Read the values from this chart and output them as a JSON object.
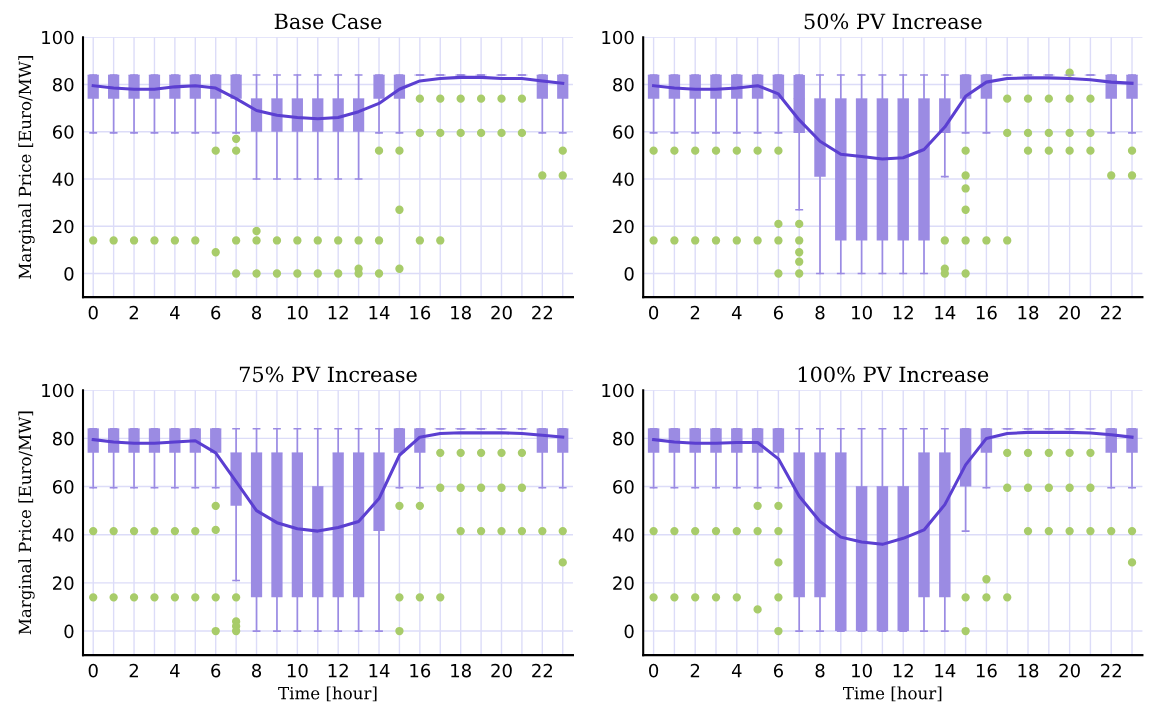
{
  "chart_data": [
    {
      "type": "box",
      "title": "Base Case",
      "ylabel": "Marginal Price [Euro/MW]",
      "ylim": [
        -10,
        100
      ],
      "yticks": [
        0,
        20,
        40,
        60,
        80,
        100
      ],
      "grid": true,
      "categories": [
        "0",
        null,
        "2",
        null,
        "4",
        null,
        "6",
        null,
        "8",
        null,
        "10",
        null,
        "12",
        null,
        "14",
        null,
        "16",
        null,
        "18",
        null,
        "20",
        null,
        "22",
        null
      ],
      "series": [
        {
          "color": "#9b8be3",
          "boxes": [
            {
              "low": 59.5,
              "q1": 74,
              "median": 84,
              "q3": 84,
              "high": 84,
              "outliers": [
                14
              ]
            },
            {
              "low": 59.5,
              "q1": 74,
              "median": 84,
              "q3": 84,
              "high": 84,
              "outliers": [
                14
              ]
            },
            {
              "low": 59.5,
              "q1": 74,
              "median": 84,
              "q3": 84,
              "high": 84,
              "outliers": [
                14
              ]
            },
            {
              "low": 59.5,
              "q1": 74,
              "median": 84,
              "q3": 84,
              "high": 84,
              "outliers": [
                14
              ]
            },
            {
              "low": 59.5,
              "q1": 74,
              "median": 84,
              "q3": 84,
              "high": 84,
              "outliers": [
                14
              ]
            },
            {
              "low": 59.5,
              "q1": 74,
              "median": 84,
              "q3": 84,
              "high": 84,
              "outliers": [
                14
              ]
            },
            {
              "low": 59.5,
              "q1": 74,
              "median": 84,
              "q3": 84,
              "high": 84,
              "outliers": [
                52,
                9
              ]
            },
            {
              "low": 59.5,
              "q1": 74,
              "median": 84,
              "q3": 84,
              "high": 84,
              "outliers": [
                57,
                52,
                14,
                0
              ]
            },
            {
              "low": 40,
              "q1": 60,
              "median": 74,
              "q3": 74,
              "high": 84,
              "outliers": [
                18,
                14,
                0
              ]
            },
            {
              "low": 40,
              "q1": 60,
              "median": 74,
              "q3": 74,
              "high": 84,
              "outliers": [
                14,
                0
              ]
            },
            {
              "low": 40,
              "q1": 60,
              "median": 74,
              "q3": 74,
              "high": 84,
              "outliers": [
                14,
                0
              ]
            },
            {
              "low": 40,
              "q1": 60,
              "median": 74,
              "q3": 74,
              "high": 84,
              "outliers": [
                14,
                0
              ]
            },
            {
              "low": 40,
              "q1": 60,
              "median": 74,
              "q3": 74,
              "high": 84,
              "outliers": [
                14,
                0
              ]
            },
            {
              "low": 40,
              "q1": 60,
              "median": 74,
              "q3": 74,
              "high": 84,
              "outliers": [
                14,
                2,
                0
              ]
            },
            {
              "low": 59.5,
              "q1": 74,
              "median": 84,
              "q3": 84,
              "high": 84,
              "outliers": [
                52,
                14,
                0
              ]
            },
            {
              "low": 59.5,
              "q1": 74,
              "median": 84,
              "q3": 84,
              "high": 84,
              "outliers": [
                52,
                27,
                2
              ]
            },
            {
              "low": 84,
              "q1": 84,
              "median": 84,
              "q3": 84,
              "high": 84,
              "outliers": [
                74,
                59.5,
                14
              ]
            },
            {
              "low": 84,
              "q1": 84,
              "median": 84,
              "q3": 84,
              "high": 84,
              "outliers": [
                74,
                59.5,
                14
              ]
            },
            {
              "low": 84,
              "q1": 84,
              "median": 84,
              "q3": 84,
              "high": 84,
              "outliers": [
                74,
                59.5
              ]
            },
            {
              "low": 84,
              "q1": 84,
              "median": 84,
              "q3": 84,
              "high": 84,
              "outliers": [
                74,
                59.5
              ]
            },
            {
              "low": 84,
              "q1": 84,
              "median": 84,
              "q3": 84,
              "high": 84,
              "outliers": [
                74,
                59.5
              ]
            },
            {
              "low": 84,
              "q1": 84,
              "median": 84,
              "q3": 84,
              "high": 84,
              "outliers": [
                74,
                59.5
              ]
            },
            {
              "low": 59.5,
              "q1": 74,
              "median": 84,
              "q3": 84,
              "high": 84,
              "outliers": [
                41.5
              ]
            },
            {
              "low": 59.5,
              "q1": 74,
              "median": 84,
              "q3": 84,
              "high": 84,
              "outliers": [
                52,
                41.5
              ]
            }
          ]
        },
        {
          "type": "line",
          "color": "#5b3fd1",
          "values": [
            79.5,
            78.5,
            78,
            78,
            79,
            79.5,
            78.5,
            74,
            69,
            67,
            66,
            65.5,
            66,
            68.5,
            72,
            78,
            81.5,
            82.5,
            83,
            83,
            82.5,
            82.5,
            81.5,
            80.5
          ]
        }
      ]
    },
    {
      "type": "box",
      "title": "50% PV Increase",
      "ylim": [
        -10,
        100
      ],
      "yticks": [
        0,
        20,
        40,
        60,
        80,
        100
      ],
      "grid": true,
      "categories": [
        "0",
        null,
        "2",
        null,
        "4",
        null,
        "6",
        null,
        "8",
        null,
        "10",
        null,
        "12",
        null,
        "14",
        null,
        "16",
        null,
        "18",
        null,
        "20",
        null,
        "22",
        null
      ],
      "series": [
        {
          "color": "#9b8be3",
          "boxes": [
            {
              "low": 59.5,
              "q1": 74,
              "median": 84,
              "q3": 84,
              "high": 84,
              "outliers": [
                52,
                14
              ]
            },
            {
              "low": 59.5,
              "q1": 74,
              "median": 84,
              "q3": 84,
              "high": 84,
              "outliers": [
                52,
                14
              ]
            },
            {
              "low": 59.5,
              "q1": 74,
              "median": 84,
              "q3": 84,
              "high": 84,
              "outliers": [
                52,
                14
              ]
            },
            {
              "low": 59.5,
              "q1": 74,
              "median": 84,
              "q3": 84,
              "high": 84,
              "outliers": [
                52,
                14
              ]
            },
            {
              "low": 59.5,
              "q1": 74,
              "median": 84,
              "q3": 84,
              "high": 84,
              "outliers": [
                52,
                14
              ]
            },
            {
              "low": 59.5,
              "q1": 74,
              "median": 84,
              "q3": 84,
              "high": 84,
              "outliers": [
                52,
                14
              ]
            },
            {
              "low": 59.5,
              "q1": 74,
              "median": 84,
              "q3": 84,
              "high": 84,
              "outliers": [
                52,
                21,
                14,
                0
              ]
            },
            {
              "low": 27,
              "q1": 59.5,
              "median": 74,
              "q3": 84,
              "high": 84,
              "outliers": [
                21,
                14,
                9,
                5,
                0
              ]
            },
            {
              "low": 0,
              "q1": 41,
              "median": 74,
              "q3": 74,
              "high": 84
            },
            {
              "low": 0,
              "q1": 14,
              "median": 74,
              "q3": 74,
              "high": 84
            },
            {
              "low": 0,
              "q1": 14,
              "median": 74,
              "q3": 74,
              "high": 84
            },
            {
              "low": 0,
              "q1": 14,
              "median": 74,
              "q3": 74,
              "high": 84
            },
            {
              "low": 0,
              "q1": 14,
              "median": 74,
              "q3": 74,
              "high": 84
            },
            {
              "low": 0,
              "q1": 14,
              "median": 74,
              "q3": 74,
              "high": 84
            },
            {
              "low": 41,
              "q1": 59.5,
              "median": 74,
              "q3": 74,
              "high": 84,
              "outliers": [
                14,
                2,
                0
              ]
            },
            {
              "low": 59.5,
              "q1": 74,
              "median": 84,
              "q3": 84,
              "high": 84,
              "outliers": [
                52,
                41.5,
                36,
                27,
                14,
                0
              ]
            },
            {
              "low": 59.5,
              "q1": 74,
              "median": 84,
              "q3": 84,
              "high": 84,
              "outliers": [
                14
              ]
            },
            {
              "low": 84,
              "q1": 84,
              "median": 84,
              "q3": 84,
              "high": 84,
              "outliers": [
                74,
                59.5,
                14
              ]
            },
            {
              "low": 84,
              "q1": 84,
              "median": 84,
              "q3": 84,
              "high": 84,
              "outliers": [
                74,
                59.5,
                52
              ]
            },
            {
              "low": 84,
              "q1": 84,
              "median": 84,
              "q3": 84,
              "high": 84,
              "outliers": [
                74,
                59.5,
                52
              ]
            },
            {
              "low": 84,
              "q1": 84,
              "median": 84,
              "q3": 84,
              "high": 84,
              "outliers": [
                85,
                74,
                59.5,
                52
              ]
            },
            {
              "low": 84,
              "q1": 84,
              "median": 84,
              "q3": 84,
              "high": 84,
              "outliers": [
                74,
                59.5,
                52
              ]
            },
            {
              "low": 59.5,
              "q1": 74,
              "median": 84,
              "q3": 84,
              "high": 84,
              "outliers": [
                41.5
              ]
            },
            {
              "low": 59.5,
              "q1": 74,
              "median": 84,
              "q3": 84,
              "high": 84,
              "outliers": [
                52,
                41.5
              ]
            }
          ]
        },
        {
          "type": "line",
          "color": "#5b3fd1",
          "values": [
            79.5,
            78.5,
            78,
            78,
            78.5,
            79.5,
            76,
            65,
            56,
            50.5,
            49.5,
            48.5,
            49,
            52.5,
            62,
            75,
            81,
            82.5,
            82.8,
            82.8,
            82.5,
            82,
            81,
            80.5
          ]
        }
      ]
    },
    {
      "type": "box",
      "title": "75% PV Increase",
      "xlabel": "Time [hour]",
      "ylabel": "Marginal Price [Euro/MW]",
      "ylim": [
        -10,
        100
      ],
      "yticks": [
        0,
        20,
        40,
        60,
        80,
        100
      ],
      "grid": true,
      "categories": [
        "0",
        null,
        "2",
        null,
        "4",
        null,
        "6",
        null,
        "8",
        null,
        "10",
        null,
        "12",
        null,
        "14",
        null,
        "16",
        null,
        "18",
        null,
        "20",
        null,
        "22",
        null
      ],
      "series": [
        {
          "color": "#9b8be3",
          "boxes": [
            {
              "low": 59.5,
              "q1": 74,
              "median": 84,
              "q3": 84,
              "high": 84,
              "outliers": [
                41.5,
                14
              ]
            },
            {
              "low": 59.5,
              "q1": 74,
              "median": 84,
              "q3": 84,
              "high": 84,
              "outliers": [
                41.5,
                14
              ]
            },
            {
              "low": 59.5,
              "q1": 74,
              "median": 84,
              "q3": 84,
              "high": 84,
              "outliers": [
                41.5,
                14
              ]
            },
            {
              "low": 59.5,
              "q1": 74,
              "median": 84,
              "q3": 84,
              "high": 84,
              "outliers": [
                41.5,
                14
              ]
            },
            {
              "low": 59.5,
              "q1": 74,
              "median": 84,
              "q3": 84,
              "high": 84,
              "outliers": [
                41.5,
                14
              ]
            },
            {
              "low": 59.5,
              "q1": 74,
              "median": 84,
              "q3": 84,
              "high": 84,
              "outliers": [
                41.5,
                14
              ]
            },
            {
              "low": 59.5,
              "q1": 74,
              "median": 84,
              "q3": 84,
              "high": 84,
              "outliers": [
                52,
                42,
                14,
                0
              ]
            },
            {
              "low": 21,
              "q1": 52,
              "median": 74,
              "q3": 74,
              "high": 84,
              "outliers": [
                14,
                4,
                2,
                0
              ]
            },
            {
              "low": 0,
              "q1": 14,
              "median": 74,
              "q3": 74,
              "high": 84
            },
            {
              "low": 0,
              "q1": 14,
              "median": 74,
              "q3": 74,
              "high": 84
            },
            {
              "low": 0,
              "q1": 14,
              "median": 74,
              "q3": 74,
              "high": 84
            },
            {
              "low": 0,
              "q1": 14,
              "median": 60,
              "q3": 60,
              "high": 84
            },
            {
              "low": 0,
              "q1": 14,
              "median": 74,
              "q3": 74,
              "high": 84
            },
            {
              "low": 0,
              "q1": 14,
              "median": 74,
              "q3": 74,
              "high": 84
            },
            {
              "low": 0,
              "q1": 41.5,
              "median": 74,
              "q3": 74,
              "high": 84
            },
            {
              "low": 59.5,
              "q1": 74,
              "median": 84,
              "q3": 84,
              "high": 84,
              "outliers": [
                52,
                14,
                0
              ]
            },
            {
              "low": 59.5,
              "q1": 74,
              "median": 84,
              "q3": 84,
              "high": 84,
              "outliers": [
                52,
                14
              ]
            },
            {
              "low": 84,
              "q1": 84,
              "median": 84,
              "q3": 84,
              "high": 84,
              "outliers": [
                74,
                59.5,
                14
              ]
            },
            {
              "low": 84,
              "q1": 84,
              "median": 84,
              "q3": 84,
              "high": 84,
              "outliers": [
                74,
                59.5,
                41.5
              ]
            },
            {
              "low": 84,
              "q1": 84,
              "median": 84,
              "q3": 84,
              "high": 84,
              "outliers": [
                74,
                59.5,
                41.5
              ]
            },
            {
              "low": 84,
              "q1": 84,
              "median": 84,
              "q3": 84,
              "high": 84,
              "outliers": [
                74,
                59.5,
                41.5
              ]
            },
            {
              "low": 84,
              "q1": 84,
              "median": 84,
              "q3": 84,
              "high": 84,
              "outliers": [
                74,
                59.5,
                41.5
              ]
            },
            {
              "low": 59.5,
              "q1": 74,
              "median": 84,
              "q3": 84,
              "high": 84,
              "outliers": [
                41.5
              ]
            },
            {
              "low": 59.5,
              "q1": 74,
              "median": 84,
              "q3": 84,
              "high": 84,
              "outliers": [
                41.5,
                28.5
              ]
            }
          ]
        },
        {
          "type": "line",
          "color": "#5b3fd1",
          "values": [
            79.5,
            78.5,
            78,
            78,
            78.5,
            79,
            74,
            62,
            50,
            45,
            42.5,
            41.5,
            43,
            45.5,
            55,
            73,
            80.5,
            82,
            82.3,
            82.3,
            82.3,
            82,
            81.3,
            80.5
          ]
        }
      ]
    },
    {
      "type": "box",
      "title": "100% PV Increase",
      "xlabel": "Time [hour]",
      "ylim": [
        -10,
        100
      ],
      "yticks": [
        0,
        20,
        40,
        60,
        80,
        100
      ],
      "grid": true,
      "categories": [
        "0",
        null,
        "2",
        null,
        "4",
        null,
        "6",
        null,
        "8",
        null,
        "10",
        null,
        "12",
        null,
        "14",
        null,
        "16",
        null,
        "18",
        null,
        "20",
        null,
        "22",
        null
      ],
      "series": [
        {
          "color": "#9b8be3",
          "boxes": [
            {
              "low": 59.5,
              "q1": 74,
              "median": 84,
              "q3": 84,
              "high": 84,
              "outliers": [
                41.5,
                14
              ]
            },
            {
              "low": 59.5,
              "q1": 74,
              "median": 84,
              "q3": 84,
              "high": 84,
              "outliers": [
                41.5,
                14
              ]
            },
            {
              "low": 59.5,
              "q1": 74,
              "median": 84,
              "q3": 84,
              "high": 84,
              "outliers": [
                41.5,
                14
              ]
            },
            {
              "low": 59.5,
              "q1": 74,
              "median": 84,
              "q3": 84,
              "high": 84,
              "outliers": [
                41.5,
                14
              ]
            },
            {
              "low": 59.5,
              "q1": 74,
              "median": 84,
              "q3": 84,
              "high": 84,
              "outliers": [
                41.5,
                14
              ]
            },
            {
              "low": 59.5,
              "q1": 74,
              "median": 84,
              "q3": 84,
              "high": 84,
              "outliers": [
                52,
                41.5,
                9
              ]
            },
            {
              "low": 59.5,
              "q1": 74,
              "median": 84,
              "q3": 84,
              "high": 84,
              "outliers": [
                52,
                41.5,
                28.5,
                14,
                0
              ]
            },
            {
              "low": 0,
              "q1": 14,
              "median": 74,
              "q3": 74,
              "high": 84
            },
            {
              "low": 0,
              "q1": 14,
              "median": 74,
              "q3": 74,
              "high": 84
            },
            {
              "low": 0,
              "q1": 0,
              "median": 74,
              "q3": 74,
              "high": 84
            },
            {
              "low": 0,
              "q1": 0,
              "median": 60,
              "q3": 60,
              "high": 84
            },
            {
              "low": 0,
              "q1": 0,
              "median": 60,
              "q3": 60,
              "high": 84
            },
            {
              "low": 0,
              "q1": 0,
              "median": 60,
              "q3": 60,
              "high": 84
            },
            {
              "low": 0,
              "q1": 14,
              "median": 74,
              "q3": 74,
              "high": 84
            },
            {
              "low": 0,
              "q1": 14,
              "median": 74,
              "q3": 74,
              "high": 84
            },
            {
              "low": 41.5,
              "q1": 60,
              "median": 84,
              "q3": 84,
              "high": 84,
              "outliers": [
                14,
                0
              ]
            },
            {
              "low": 59.5,
              "q1": 74,
              "median": 84,
              "q3": 84,
              "high": 84,
              "outliers": [
                21.5,
                14
              ]
            },
            {
              "low": 84,
              "q1": 84,
              "median": 84,
              "q3": 84,
              "high": 84,
              "outliers": [
                74,
                59.5,
                14
              ]
            },
            {
              "low": 84,
              "q1": 84,
              "median": 84,
              "q3": 84,
              "high": 84,
              "outliers": [
                74,
                59.5,
                41.5
              ]
            },
            {
              "low": 84,
              "q1": 84,
              "median": 84,
              "q3": 84,
              "high": 84,
              "outliers": [
                74,
                59.5,
                41.5
              ]
            },
            {
              "low": 84,
              "q1": 84,
              "median": 84,
              "q3": 84,
              "high": 84,
              "outliers": [
                74,
                59.5,
                41.5
              ]
            },
            {
              "low": 84,
              "q1": 84,
              "median": 84,
              "q3": 84,
              "high": 84,
              "outliers": [
                74,
                59.5,
                41.5
              ]
            },
            {
              "low": 59.5,
              "q1": 74,
              "median": 84,
              "q3": 84,
              "high": 84,
              "outliers": [
                41.5
              ]
            },
            {
              "low": 59.5,
              "q1": 74,
              "median": 84,
              "q3": 84,
              "high": 84,
              "outliers": [
                41.5,
                28.5
              ]
            }
          ]
        },
        {
          "type": "line",
          "color": "#5b3fd1",
          "values": [
            79.5,
            78.5,
            78,
            78,
            78.3,
            78.3,
            71.5,
            56,
            45.5,
            39,
            37,
            36,
            38.5,
            42,
            52.5,
            69,
            80,
            82,
            82.5,
            82.5,
            82.5,
            82.2,
            81.5,
            80.5
          ]
        }
      ]
    }
  ]
}
